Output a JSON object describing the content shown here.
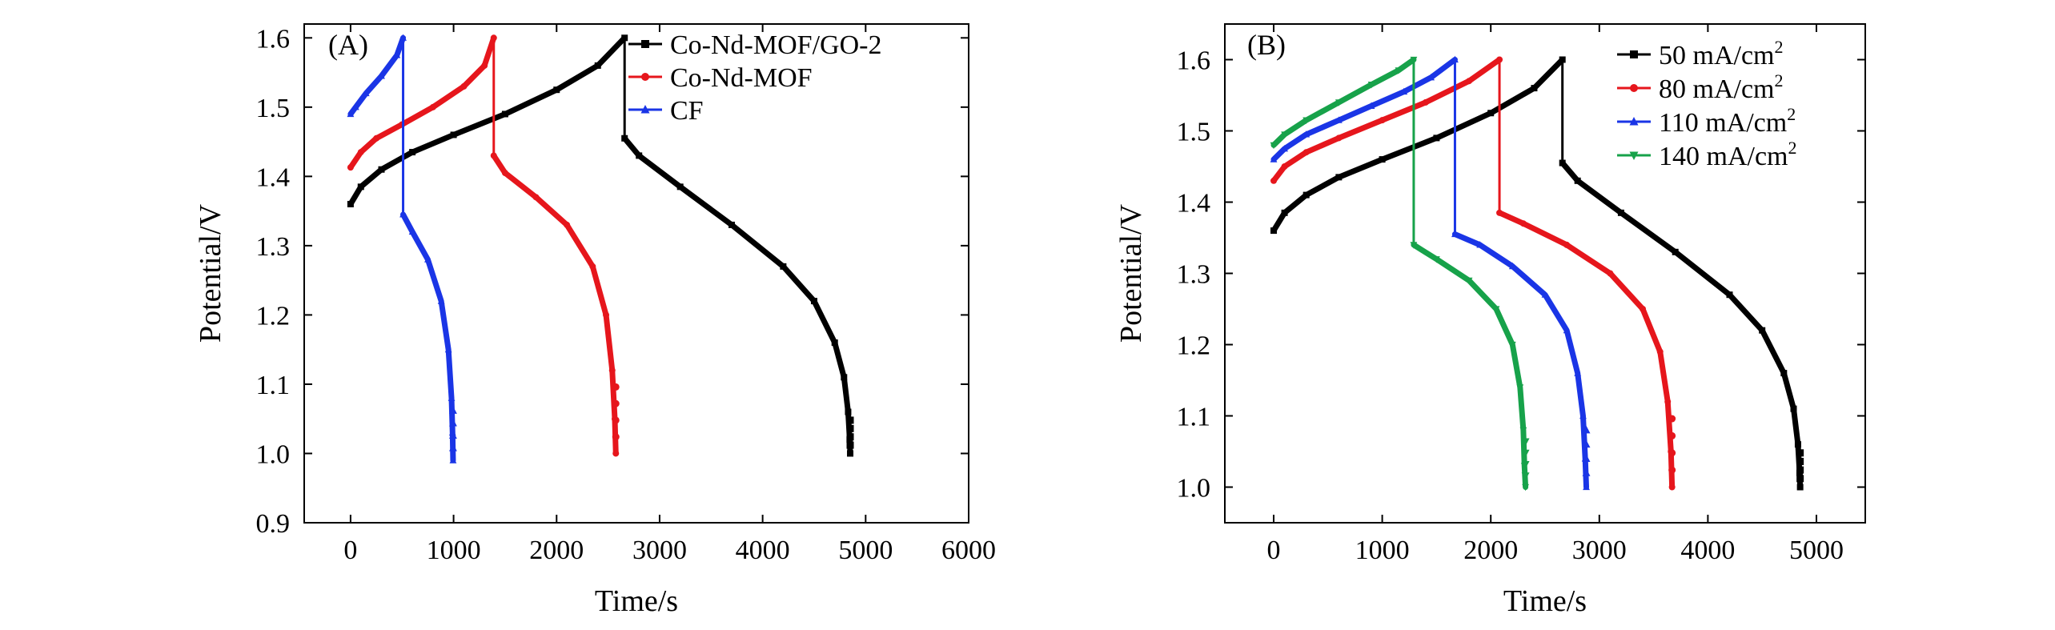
{
  "chart_data": [
    {
      "type": "line",
      "panel_label": "(A)",
      "xlabel": "Time/s",
      "ylabel": "Potential/V",
      "xlim": [
        -450,
        6000
      ],
      "ylim": [
        0.9,
        1.62
      ],
      "xticks": [
        0,
        1000,
        2000,
        3000,
        4000,
        5000,
        6000
      ],
      "yticks": [
        0.9,
        1.0,
        1.1,
        1.2,
        1.3,
        1.4,
        1.5,
        1.6
      ],
      "ytick_labels": [
        "0.9",
        "1.0",
        "1.1",
        "1.2",
        "1.3",
        "1.4",
        "1.5",
        "1.6"
      ],
      "legend_position": "top-right",
      "series": [
        {
          "name": "Co-Nd-MOF/GO-2",
          "color": "#000000",
          "marker": "square",
          "charge": {
            "x": [
              0,
              100,
              300,
              600,
              1000,
              1500,
              2000,
              2400,
              2660
            ],
            "y": [
              1.36,
              1.385,
              1.41,
              1.435,
              1.46,
              1.49,
              1.525,
              1.56,
              1.6
            ]
          },
          "drop": {
            "x": 2660,
            "y_from": 1.6,
            "y_to": 1.455
          },
          "discharge": {
            "x": [
              2660,
              2800,
              3200,
              3700,
              4200,
              4500,
              4700,
              4790,
              4830,
              4845,
              4850
            ],
            "y": [
              1.455,
              1.43,
              1.385,
              1.33,
              1.27,
              1.22,
              1.16,
              1.11,
              1.06,
              1.02,
              1.0
            ]
          }
        },
        {
          "name": "Co-Nd-MOF",
          "color": "#e6161c",
          "marker": "circle",
          "charge": {
            "x": [
              0,
              100,
              250,
              500,
              800,
              1100,
              1300,
              1390
            ],
            "y": [
              1.413,
              1.435,
              1.455,
              1.475,
              1.5,
              1.53,
              1.56,
              1.6
            ]
          },
          "drop": {
            "x": 1390,
            "y_from": 1.6,
            "y_to": 1.43
          },
          "discharge": {
            "x": [
              1390,
              1500,
              1800,
              2100,
              2350,
              2480,
              2540,
              2565,
              2575
            ],
            "y": [
              1.43,
              1.405,
              1.37,
              1.33,
              1.27,
              1.2,
              1.12,
              1.05,
              1.0
            ]
          }
        },
        {
          "name": "CF",
          "color": "#1a35e6",
          "marker": "triangle",
          "charge": {
            "x": [
              0,
              50,
              150,
              300,
              450,
              510
            ],
            "y": [
              1.49,
              1.5,
              1.52,
              1.545,
              1.575,
              1.6
            ]
          },
          "drop": {
            "x": 510,
            "y_from": 1.6,
            "y_to": 1.345
          },
          "discharge": {
            "x": [
              510,
              600,
              750,
              880,
              950,
              980,
              990,
              995
            ],
            "y": [
              1.345,
              1.32,
              1.28,
              1.22,
              1.15,
              1.08,
              1.03,
              0.99
            ]
          }
        }
      ]
    },
    {
      "type": "line",
      "panel_label": "(B)",
      "xlabel": "Time/s",
      "ylabel": "Potential/V",
      "xlim": [
        -450,
        5450
      ],
      "ylim": [
        0.95,
        1.65
      ],
      "xticks": [
        0,
        1000,
        2000,
        3000,
        4000,
        5000
      ],
      "yticks": [
        1.0,
        1.1,
        1.2,
        1.3,
        1.4,
        1.5,
        1.6
      ],
      "ytick_labels": [
        "1.0",
        "1.1",
        "1.2",
        "1.3",
        "1.4",
        "1.5",
        "1.6"
      ],
      "legend_position": "top-right",
      "series": [
        {
          "name": "50 mA/cm",
          "name_sup": "2",
          "color": "#000000",
          "marker": "square",
          "charge": {
            "x": [
              0,
              100,
              300,
              600,
              1000,
              1500,
              2000,
              2400,
              2660
            ],
            "y": [
              1.36,
              1.385,
              1.41,
              1.435,
              1.46,
              1.49,
              1.525,
              1.56,
              1.6
            ]
          },
          "drop": {
            "x": 2660,
            "y_from": 1.6,
            "y_to": 1.455
          },
          "discharge": {
            "x": [
              2660,
              2800,
              3200,
              3700,
              4200,
              4500,
              4700,
              4790,
              4830,
              4845,
              4850
            ],
            "y": [
              1.455,
              1.43,
              1.385,
              1.33,
              1.27,
              1.22,
              1.16,
              1.11,
              1.06,
              1.02,
              1.0
            ]
          }
        },
        {
          "name": "80 mA/cm",
          "name_sup": "2",
          "color": "#e6161c",
          "marker": "circle",
          "charge": {
            "x": [
              0,
              100,
              300,
              600,
              1000,
              1400,
              1800,
              2080
            ],
            "y": [
              1.43,
              1.45,
              1.47,
              1.49,
              1.515,
              1.54,
              1.57,
              1.6
            ]
          },
          "drop": {
            "x": 2080,
            "y_from": 1.6,
            "y_to": 1.385
          },
          "discharge": {
            "x": [
              2080,
              2300,
              2700,
              3100,
              3400,
              3560,
              3630,
              3660,
              3670
            ],
            "y": [
              1.385,
              1.37,
              1.34,
              1.3,
              1.25,
              1.19,
              1.12,
              1.05,
              1.0
            ]
          }
        },
        {
          "name": "110 mA/cm",
          "name_sup": "2",
          "color": "#1a35e6",
          "marker": "triangle",
          "charge": {
            "x": [
              0,
              100,
              300,
              600,
              900,
              1200,
              1450,
              1670
            ],
            "y": [
              1.46,
              1.475,
              1.495,
              1.515,
              1.535,
              1.555,
              1.575,
              1.6
            ]
          },
          "drop": {
            "x": 1670,
            "y_from": 1.6,
            "y_to": 1.355
          },
          "discharge": {
            "x": [
              1670,
              1900,
              2200,
              2500,
              2700,
              2800,
              2850,
              2870,
              2880
            ],
            "y": [
              1.355,
              1.34,
              1.31,
              1.27,
              1.22,
              1.16,
              1.1,
              1.04,
              1.0
            ]
          }
        },
        {
          "name": "140 mA/cm",
          "name_sup": "2",
          "color": "#17a24a",
          "marker": "triangle-down",
          "charge": {
            "x": [
              0,
              100,
              300,
              600,
              900,
              1150,
              1290
            ],
            "y": [
              1.48,
              1.495,
              1.515,
              1.54,
              1.565,
              1.585,
              1.6
            ]
          },
          "drop": {
            "x": 1290,
            "y_from": 1.6,
            "y_to": 1.34
          },
          "discharge": {
            "x": [
              1290,
              1500,
              1800,
              2050,
              2200,
              2270,
              2300,
              2310,
              2320
            ],
            "y": [
              1.34,
              1.32,
              1.29,
              1.25,
              1.2,
              1.14,
              1.08,
              1.03,
              1.0
            ]
          }
        }
      ]
    }
  ]
}
